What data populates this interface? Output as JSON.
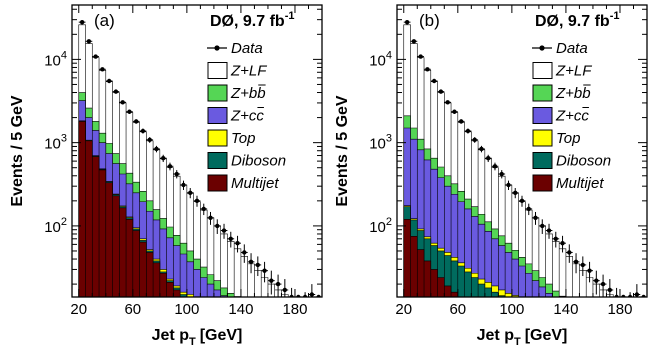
{
  "colors": {
    "Z+LF": "#ffffff",
    "Z+bb": "#55d655",
    "Z+cc": "#6a5ae0",
    "Top": "#ffff00",
    "Diboson": "#006b5e",
    "Multijet": "#6b0000",
    "data": "#000000"
  },
  "chart_data": [
    {
      "type": "area",
      "panel": "(a)",
      "experiment": "DØ, 9.7 fb",
      "lumi_exponent": "-1",
      "xlabel": "Jet p",
      "xlabel_sub": "T",
      "xlabel_unit": "[GeV]",
      "ylabel": "Events / 5 GeV",
      "xlim": [
        15,
        200
      ],
      "ylim": [
        14,
        45000
      ],
      "y_scale": "log",
      "x_ticks": [
        20,
        60,
        100,
        140,
        180
      ],
      "y_ticks": [
        {
          "value": 100,
          "base": "10",
          "exp": "2"
        },
        {
          "value": 1000,
          "base": "10",
          "exp": "3"
        },
        {
          "value": 10000,
          "base": "10",
          "exp": "4"
        }
      ],
      "legend": [
        {
          "label": "Data",
          "key": "data",
          "style": "marker"
        },
        {
          "label": "Z+LF",
          "key": "Z+LF",
          "style": "box"
        },
        {
          "label": "Z+bb",
          "key": "Z+bb",
          "style": "box"
        },
        {
          "label": "Z+cc",
          "key": "Z+cc",
          "style": "box"
        },
        {
          "label": "Top",
          "key": "Top",
          "style": "box"
        },
        {
          "label": "Diboson",
          "key": "Diboson",
          "style": "box"
        },
        {
          "label": "Multijet",
          "key": "Multijet",
          "style": "box"
        }
      ],
      "bin_width": 5,
      "bin_edges_low": [
        20,
        25,
        30,
        35,
        40,
        45,
        50,
        55,
        60,
        65,
        70,
        75,
        80,
        85,
        90,
        95,
        100,
        105,
        110,
        115,
        120,
        125,
        130,
        135,
        140,
        145,
        150,
        155,
        160,
        165,
        170,
        175,
        180,
        185,
        190,
        195
      ],
      "stack_order": [
        "Multijet",
        "Diboson",
        "Top",
        "Z+cc",
        "Z+bb",
        "Z+LF"
      ],
      "stack_tops": {
        "Multijet": [
          1800,
          1050,
          680,
          470,
          330,
          230,
          165,
          120,
          88,
          64,
          48,
          36,
          27,
          21,
          17,
          14,
          0,
          0,
          0,
          0,
          0,
          0,
          0,
          0,
          0,
          0,
          0,
          0,
          0,
          0,
          0,
          0,
          0,
          0,
          0,
          0
        ],
        "Diboson": [
          1820,
          1065,
          692,
          480,
          338,
          237,
          171,
          125,
          92,
          67,
          50,
          38,
          28,
          22,
          18,
          15,
          0,
          0,
          0,
          0,
          0,
          0,
          0,
          0,
          0,
          0,
          0,
          0,
          0,
          0,
          0,
          0,
          0,
          0,
          0,
          0
        ],
        "Top": [
          1830,
          1072,
          698,
          485,
          342,
          241,
          174,
          128,
          95,
          70,
          52,
          40,
          30,
          23,
          19,
          16,
          15,
          14,
          0,
          0,
          0,
          0,
          0,
          0,
          0,
          0,
          0,
          0,
          0,
          0,
          0,
          0,
          0,
          0,
          0,
          0
        ],
        "Z+cc": [
          3200,
          2000,
          1400,
          1000,
          740,
          560,
          420,
          320,
          250,
          195,
          150,
          118,
          92,
          72,
          58,
          46,
          37,
          30,
          24,
          20,
          17,
          14.5,
          0,
          0,
          0,
          0,
          0,
          0,
          0,
          0,
          0,
          0,
          0,
          0,
          0,
          0
        ],
        "Z+bb": [
          4000,
          2600,
          1800,
          1300,
          980,
          740,
          560,
          430,
          335,
          260,
          200,
          157,
          123,
          97,
          77,
          62,
          50,
          40,
          32,
          26,
          22,
          18,
          15.5,
          14.2,
          0,
          0,
          0,
          0,
          0,
          0,
          0,
          0,
          0,
          0,
          0,
          0
        ],
        "Z+LF": [
          26000,
          15500,
          10500,
          7400,
          5400,
          4000,
          3000,
          2300,
          1750,
          1350,
          1050,
          820,
          640,
          500,
          395,
          310,
          245,
          195,
          155,
          125,
          100,
          80,
          65,
          53,
          43,
          35,
          29,
          24,
          20,
          17,
          15,
          0,
          0,
          0,
          0,
          0
        ]
      },
      "data_points": [
        28000,
        16500,
        10800,
        7600,
        5500,
        4100,
        3050,
        2350,
        1800,
        1380,
        1080,
        840,
        650,
        520,
        420,
        310,
        250,
        200,
        160,
        125,
        100,
        88,
        70,
        62,
        48,
        37,
        34,
        29,
        22,
        20,
        17,
        13,
        10,
        12,
        15,
        10
      ],
      "data_errors": [
        500,
        350,
        300,
        250,
        200,
        170,
        150,
        130,
        110,
        95,
        85,
        75,
        65,
        55,
        48,
        40,
        35,
        30,
        25,
        22,
        20,
        18,
        15,
        14,
        12,
        10,
        9,
        8,
        7,
        6,
        6,
        5,
        4,
        4,
        5,
        4
      ]
    },
    {
      "type": "area",
      "panel": "(b)",
      "experiment": "DØ, 9.7 fb",
      "lumi_exponent": "-1",
      "xlabel": "Jet p",
      "xlabel_sub": "T",
      "xlabel_unit": "[GeV]",
      "ylabel": "Events / 5 GeV",
      "xlim": [
        15,
        200
      ],
      "ylim": [
        14,
        45000
      ],
      "y_scale": "log",
      "x_ticks": [
        20,
        60,
        100,
        140,
        180
      ],
      "y_ticks": [
        {
          "value": 100,
          "base": "10",
          "exp": "2"
        },
        {
          "value": 1000,
          "base": "10",
          "exp": "3"
        },
        {
          "value": 10000,
          "base": "10",
          "exp": "4"
        }
      ],
      "legend": [
        {
          "label": "Data",
          "key": "data",
          "style": "marker"
        },
        {
          "label": "Z+LF",
          "key": "Z+LF",
          "style": "box"
        },
        {
          "label": "Z+bb",
          "key": "Z+bb",
          "style": "box"
        },
        {
          "label": "Z+cc",
          "key": "Z+cc",
          "style": "box"
        },
        {
          "label": "Top",
          "key": "Top",
          "style": "box"
        },
        {
          "label": "Diboson",
          "key": "Diboson",
          "style": "box"
        },
        {
          "label": "Multijet",
          "key": "Multijet",
          "style": "box"
        }
      ],
      "bin_width": 5,
      "bin_edges_low": [
        20,
        25,
        30,
        35,
        40,
        45,
        50,
        55,
        60,
        65,
        70,
        75,
        80,
        85,
        90,
        95,
        100,
        105,
        110,
        115,
        120,
        125,
        130,
        135,
        140,
        145,
        150,
        155,
        160,
        165,
        170,
        175,
        180,
        185,
        190,
        195
      ],
      "stack_order": [
        "Multijet",
        "Diboson",
        "Top",
        "Z+cc",
        "Z+bb",
        "Z+LF"
      ],
      "stack_tops": {
        "Multijet": [
          120,
          75,
          52,
          38,
          30,
          24,
          19,
          16,
          0,
          0,
          0,
          0,
          0,
          0,
          0,
          0,
          0,
          0,
          0,
          0,
          0,
          0,
          0,
          0,
          0,
          0,
          0,
          0,
          0,
          0,
          0,
          0,
          0,
          0,
          0,
          0
        ],
        "Diboson": [
          170,
          118,
          88,
          70,
          58,
          50,
          44,
          38,
          33,
          28,
          24,
          20,
          18,
          16,
          14.5,
          0,
          0,
          0,
          0,
          0,
          0,
          0,
          0,
          0,
          0,
          0,
          0,
          0,
          0,
          0,
          0,
          0,
          0,
          0,
          0,
          0
        ],
        "Top": [
          175,
          122,
          92,
          74,
          62,
          54,
          48,
          42,
          36,
          31,
          27,
          23,
          21,
          19,
          17,
          15.5,
          14.6,
          0,
          0,
          0,
          0,
          0,
          0,
          0,
          0,
          0,
          0,
          0,
          0,
          0,
          0,
          0,
          0,
          0,
          0,
          0
        ],
        "Z+cc": [
          1500,
          1100,
          820,
          620,
          480,
          380,
          300,
          240,
          195,
          160,
          130,
          105,
          86,
          70,
          58,
          48,
          40,
          33,
          27,
          22,
          18.5,
          15.5,
          0,
          0,
          0,
          0,
          0,
          0,
          0,
          0,
          0,
          0,
          0,
          0,
          0,
          0
        ],
        "Z+bb": [
          2100,
          1500,
          1100,
          840,
          650,
          510,
          400,
          320,
          260,
          210,
          170,
          138,
          112,
          92,
          76,
          62,
          51,
          42,
          35,
          29,
          24,
          20,
          16.5,
          14.3,
          0,
          0,
          0,
          0,
          0,
          0,
          0,
          0,
          0,
          0,
          0,
          0
        ],
        "Z+LF": [
          26000,
          15500,
          10500,
          7400,
          5400,
          4000,
          3000,
          2300,
          1750,
          1350,
          1050,
          820,
          640,
          500,
          395,
          310,
          245,
          195,
          155,
          125,
          100,
          80,
          65,
          53,
          43,
          35,
          29,
          24,
          20,
          17,
          15,
          0,
          0,
          0,
          0,
          0
        ]
      },
      "data_points": [
        28000,
        16500,
        10800,
        7600,
        5500,
        4100,
        3050,
        2350,
        1800,
        1380,
        1080,
        840,
        650,
        520,
        420,
        310,
        250,
        200,
        160,
        125,
        100,
        88,
        70,
        62,
        48,
        37,
        34,
        29,
        22,
        20,
        17,
        13,
        10,
        12,
        15,
        10
      ],
      "data_errors": [
        500,
        350,
        300,
        250,
        200,
        170,
        150,
        130,
        110,
        95,
        85,
        75,
        65,
        55,
        48,
        40,
        35,
        30,
        25,
        22,
        20,
        18,
        15,
        14,
        12,
        10,
        9,
        8,
        7,
        6,
        6,
        5,
        4,
        4,
        5,
        4
      ]
    }
  ]
}
